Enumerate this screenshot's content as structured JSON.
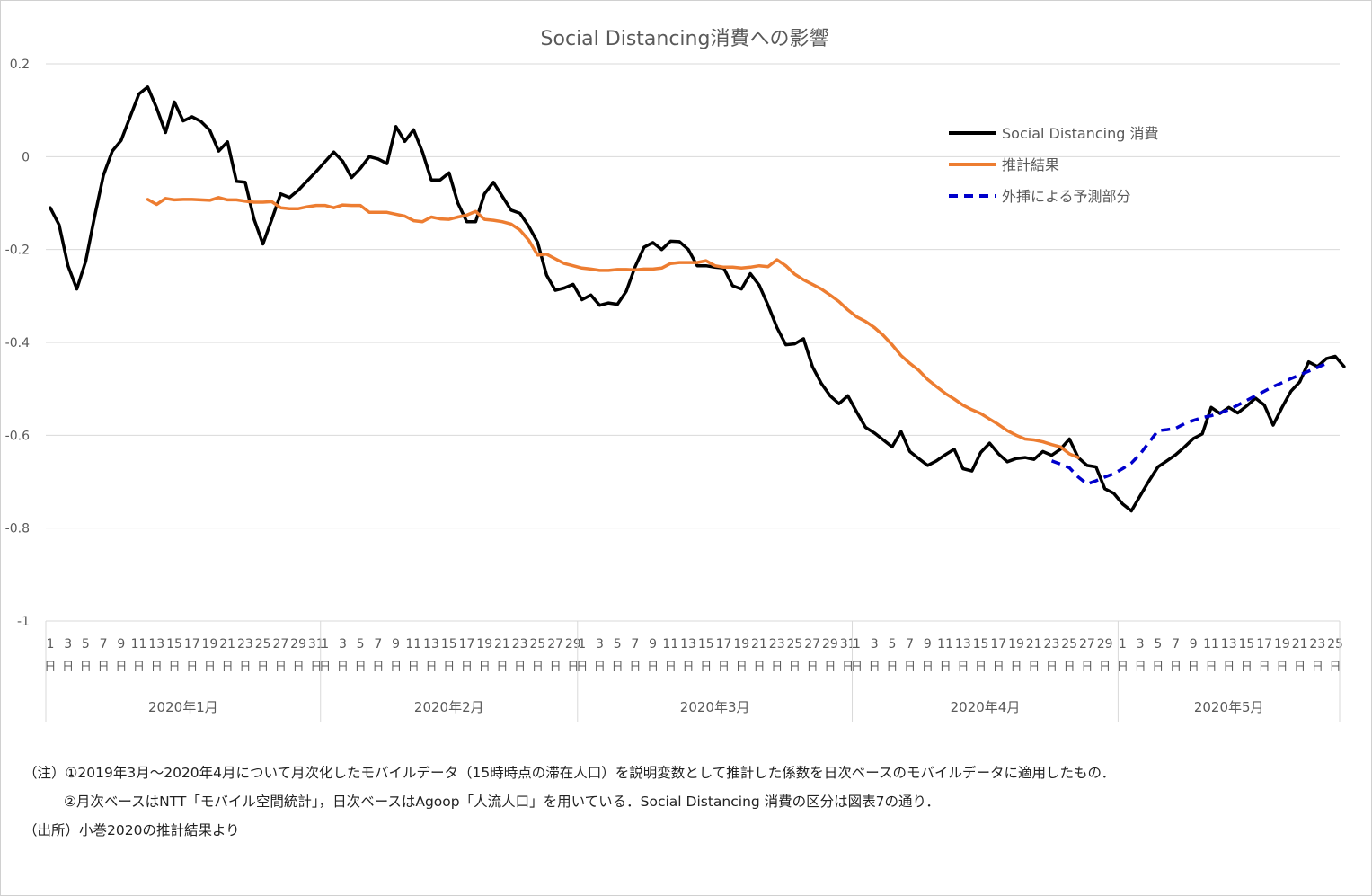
{
  "chart_data": {
    "type": "line",
    "title": "Social Distancing消費への影響",
    "ylim": [
      -1,
      0.2
    ],
    "yticks": [
      "0.2",
      "0",
      "-0.2",
      "-0.4",
      "-0.6",
      "-0.8",
      "-1"
    ],
    "grid": true,
    "legend_position": "top-right",
    "months": [
      {
        "label": "2020年1月",
        "days": 31
      },
      {
        "label": "2020年2月",
        "days": 29
      },
      {
        "label": "2020年3月",
        "days": 31
      },
      {
        "label": "2020年4月",
        "days": 30
      },
      {
        "label": "2020年5月",
        "days": 25
      }
    ],
    "day_unit": "日",
    "series": [
      {
        "name": "Social Distancing 消費",
        "color": "#000000",
        "dash": false,
        "values": [
          -0.11,
          -0.147,
          -0.235,
          -0.285,
          -0.225,
          -0.13,
          -0.04,
          0.012,
          0.035,
          0.085,
          0.135,
          0.15,
          0.105,
          0.052,
          0.118,
          0.077,
          0.086,
          0.076,
          0.057,
          0.012,
          0.032,
          -0.053,
          -0.055,
          -0.135,
          -0.188,
          -0.135,
          -0.08,
          -0.088,
          -0.072,
          -0.052,
          -0.032,
          -0.011,
          0.01,
          -0.01,
          -0.045,
          -0.025,
          0.0,
          -0.005,
          -0.015,
          0.065,
          0.033,
          0.058,
          0.01,
          -0.05,
          -0.05,
          -0.035,
          -0.1,
          -0.14,
          -0.14,
          -0.08,
          -0.055,
          -0.085,
          -0.115,
          -0.122,
          -0.15,
          -0.185,
          -0.255,
          -0.288,
          -0.283,
          -0.275,
          -0.308,
          -0.298,
          -0.32,
          -0.315,
          -0.318,
          -0.29,
          -0.237,
          -0.195,
          -0.185,
          -0.2,
          -0.182,
          -0.183,
          -0.2,
          -0.235,
          -0.235,
          -0.238,
          -0.24,
          -0.278,
          -0.285,
          -0.252,
          -0.277,
          -0.32,
          -0.368,
          -0.405,
          -0.403,
          -0.392,
          -0.452,
          -0.488,
          -0.515,
          -0.532,
          -0.515,
          -0.55,
          -0.583,
          -0.595,
          -0.61,
          -0.625,
          -0.592,
          -0.635,
          -0.65,
          -0.665,
          -0.655,
          -0.642,
          -0.63,
          -0.672,
          -0.677,
          -0.637,
          -0.617,
          -0.64,
          -0.657,
          -0.65,
          -0.648,
          -0.652,
          -0.635,
          -0.643,
          -0.63,
          -0.608,
          -0.648,
          -0.665,
          -0.668,
          -0.715,
          -0.725,
          -0.748,
          -0.763,
          -0.73,
          -0.698,
          -0.668,
          -0.655,
          -0.642,
          -0.625,
          -0.607,
          -0.597,
          -0.54,
          -0.553,
          -0.54,
          -0.552,
          -0.537,
          -0.52,
          -0.535,
          -0.578,
          -0.54,
          -0.505,
          -0.485,
          -0.442,
          -0.452,
          -0.435,
          -0.43,
          -0.452
        ]
      },
      {
        "name": "推計結果",
        "color": "#ED7D31",
        "dash": false,
        "start_index": 11,
        "values": [
          -0.092,
          -0.103,
          -0.09,
          -0.093,
          -0.092,
          -0.092,
          -0.093,
          -0.094,
          -0.088,
          -0.093,
          -0.093,
          -0.096,
          -0.098,
          -0.098,
          -0.097,
          -0.11,
          -0.112,
          -0.112,
          -0.108,
          -0.105,
          -0.105,
          -0.11,
          -0.104,
          -0.105,
          -0.105,
          -0.12,
          -0.12,
          -0.12,
          -0.124,
          -0.128,
          -0.138,
          -0.14,
          -0.13,
          -0.134,
          -0.135,
          -0.13,
          -0.126,
          -0.118,
          -0.135,
          -0.137,
          -0.14,
          -0.145,
          -0.158,
          -0.18,
          -0.212,
          -0.21,
          -0.22,
          -0.23,
          -0.235,
          -0.24,
          -0.242,
          -0.245,
          -0.245,
          -0.243,
          -0.243,
          -0.244,
          -0.242,
          -0.242,
          -0.24,
          -0.23,
          -0.228,
          -0.228,
          -0.228,
          -0.224,
          -0.235,
          -0.238,
          -0.238,
          -0.24,
          -0.238,
          -0.235,
          -0.237,
          -0.222,
          -0.235,
          -0.253,
          -0.265,
          -0.275,
          -0.285,
          -0.298,
          -0.312,
          -0.33,
          -0.345,
          -0.355,
          -0.368,
          -0.385,
          -0.405,
          -0.428,
          -0.445,
          -0.46,
          -0.48,
          -0.495,
          -0.51,
          -0.522,
          -0.535,
          -0.545,
          -0.553,
          -0.565,
          -0.577,
          -0.59,
          -0.6,
          -0.608,
          -0.61,
          -0.614,
          -0.62,
          -0.625,
          -0.64,
          -0.648
        ]
      },
      {
        "name": "外挿による予測部分",
        "color": "#0000CC",
        "dash": true,
        "start_index": 113,
        "values": [
          -0.655,
          -0.662,
          -0.67,
          -0.69,
          -0.705,
          -0.698,
          -0.69,
          -0.683,
          -0.672,
          -0.66,
          -0.64,
          -0.615,
          -0.59,
          -0.588,
          -0.585,
          -0.575,
          -0.568,
          -0.562,
          -0.558,
          -0.552,
          -0.545,
          -0.535,
          -0.525,
          -0.515,
          -0.505,
          -0.495,
          -0.487,
          -0.478,
          -0.47,
          -0.462,
          -0.454,
          -0.445
        ]
      }
    ]
  },
  "notes": {
    "line1": "（注）①2019年3月～2020年4月について月次化したモバイルデータ（15時時点の滞在人口）を説明変数として推計した係数を日次ベースのモバイルデータに適用したもの．",
    "line2": "②月次ベースはNTT「モバイル空間統計」，日次ベースはAgoop「人流人口」を用いている．Social Distancing 消費の区分は図表7の通り．",
    "line3": "（出所）小巻2020の推計結果より"
  }
}
